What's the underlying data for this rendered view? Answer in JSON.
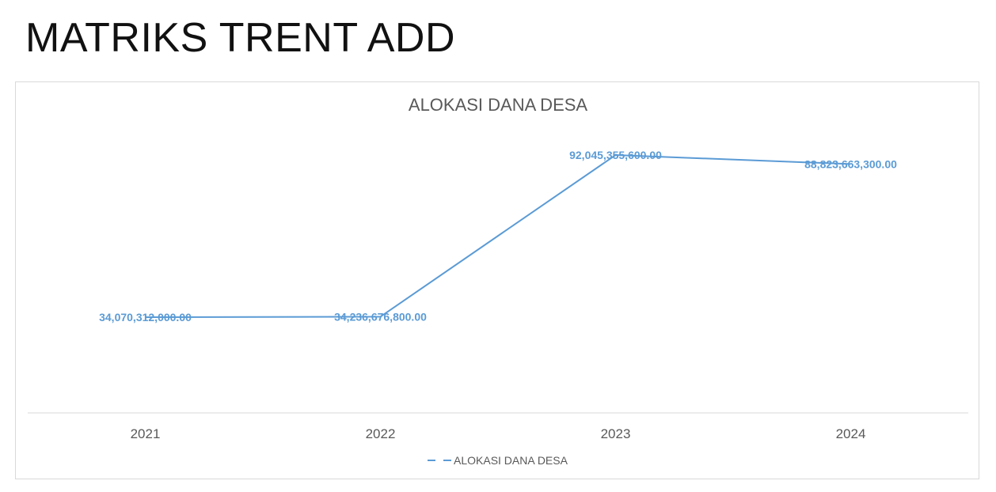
{
  "page": {
    "title": "MATRIKS TRENT ADD"
  },
  "chart_data": {
    "type": "line",
    "title": "ALOKASI DANA DESA",
    "categories": [
      "2021",
      "2022",
      "2023",
      "2024"
    ],
    "series": [
      {
        "name": "ALOKASI DANA DESA",
        "values": [
          34070312000.0,
          34236676800.0,
          92045355600.0,
          88823663300.0
        ],
        "data_labels": [
          "34,070,312,000.00",
          "34,236,676,800.00",
          "92,045,355,600.00",
          "88,823,663,300.00"
        ],
        "color": "#5b9bd5",
        "line_style": "solid",
        "legend_style": "dashed"
      }
    ],
    "xlabel": "",
    "ylabel": "",
    "y_axis_visible": false,
    "grid": false,
    "legend": "bottom"
  }
}
